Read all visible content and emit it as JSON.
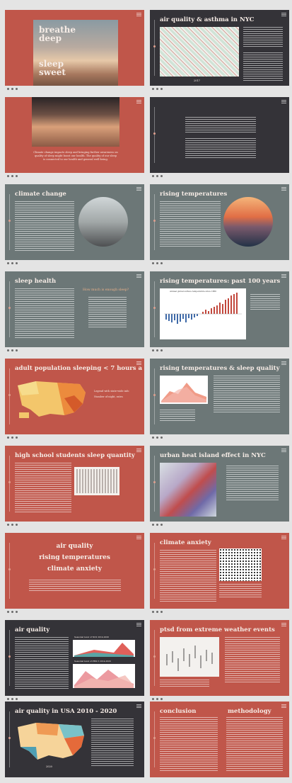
{
  "slides": [
    {
      "title": "breathe deep",
      "title2": "sleep sweet"
    },
    {
      "title": "air quality & asthma in NYC",
      "year": "2017"
    },
    {
      "body": "Climate change impacts sleep and bringing further awareness on quality of sleep might boost our health. The quality of our sleep is connected to our health and general well-being."
    },
    {
      "body": ""
    },
    {
      "title": "climate change"
    },
    {
      "title": "rising temperatures"
    },
    {
      "title": "sleep health",
      "callout": "How much is enough sleep?"
    },
    {
      "title": "rising temperatures: past 100 years",
      "chart_title": "Annual global surface temperature since 1880"
    },
    {
      "title": "adult population sleeping < 7 hours a night",
      "note1": "Legend with state-wide info",
      "note2": "Number of night, rates"
    },
    {
      "title": "rising temperatures & sleep quality"
    },
    {
      "title": "high school students sleep quantity"
    },
    {
      "title": "urban heat island effect in NYC"
    },
    {
      "line1": "air quality",
      "line2": "rising temperatures",
      "line3": "climate anxiety"
    },
    {
      "title": "climate anxiety"
    },
    {
      "title": "air quality",
      "panel1": "Seasonal level of NO2 2014-2020",
      "panel2": "Seasonal level of PM2.5 2014-2020"
    },
    {
      "title": "ptsd from extreme weather events"
    },
    {
      "title": "air quality in USA 2010 - 2020",
      "year": "2020"
    },
    {
      "title": "conclusion",
      "title2": "methodology"
    }
  ]
}
